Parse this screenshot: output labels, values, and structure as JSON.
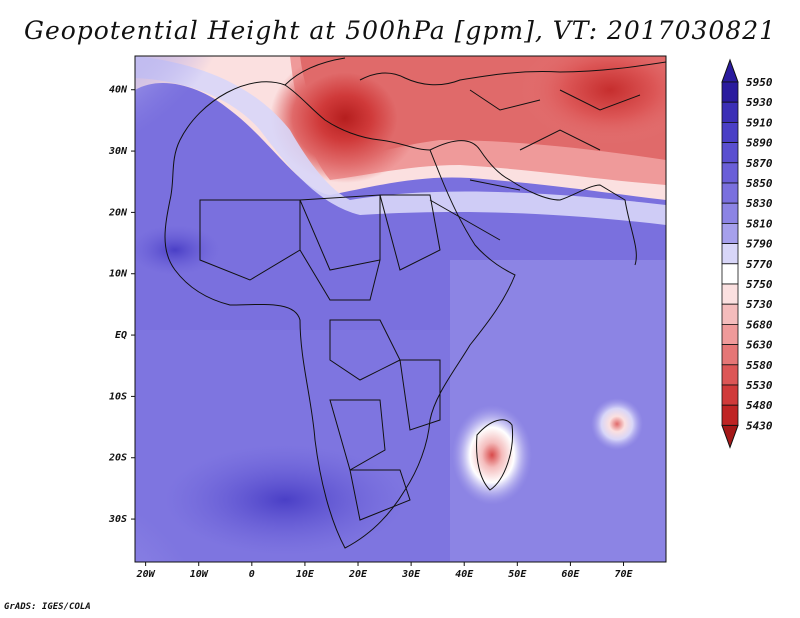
{
  "title": "Geopotential Height at 500hPa [gpm], VT: 2017030821",
  "credit": "GrADS: IGES/COLA",
  "lat_labels": [
    "40N",
    "30N",
    "20N",
    "10N",
    "EQ",
    "10S",
    "20S",
    "30S"
  ],
  "lat_values": [
    40,
    30,
    20,
    10,
    0,
    -10,
    -20,
    -30
  ],
  "lon_labels": [
    "20W",
    "10W",
    "0",
    "10E",
    "20E",
    "30E",
    "40E",
    "50E",
    "60E",
    "70E"
  ],
  "lon_values": [
    -20,
    -10,
    0,
    10,
    20,
    30,
    40,
    50,
    60,
    70
  ],
  "colorbar": {
    "levels": [
      "5950",
      "5930",
      "5910",
      "5890",
      "5870",
      "5850",
      "5830",
      "5810",
      "5790",
      "5770",
      "5750",
      "5730",
      "5680",
      "5630",
      "5580",
      "5530",
      "5480",
      "5430"
    ],
    "colors": [
      "#2a1b9e",
      "#3b2fb6",
      "#4a3fc6",
      "#5a4fd0",
      "#6a5fd8",
      "#7a70de",
      "#8c84e4",
      "#a6a0ec",
      "#d8d6f8",
      "#ffffff",
      "#fbe0e0",
      "#f4bcbc",
      "#ef9a9a",
      "#e57676",
      "#dc5656",
      "#d03a3a",
      "#bf2424",
      "#a51818"
    ]
  },
  "annotations": {
    "high_low_spots": [
      "Madagascar warm anomaly",
      "Indian Ocean warm spot"
    ]
  }
}
